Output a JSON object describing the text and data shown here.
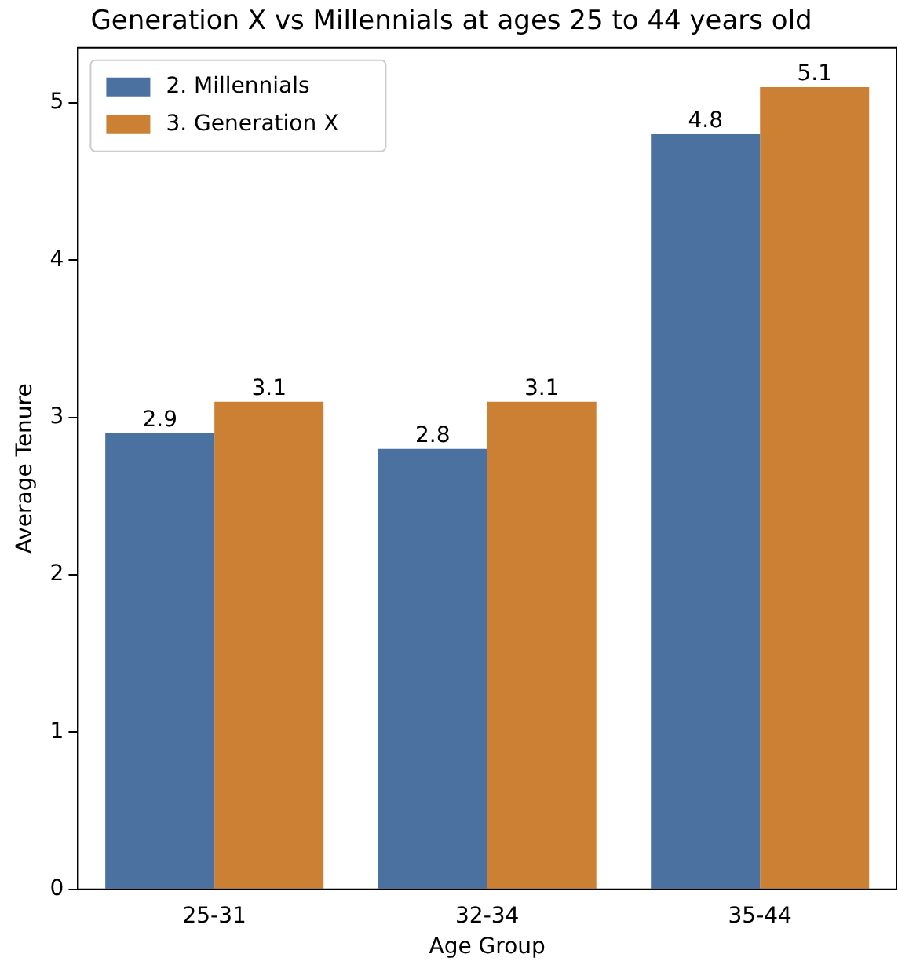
{
  "chart_data": {
    "type": "bar",
    "title": "Generation X vs Millennials at ages 25 to 44 years old",
    "xlabel": "Age Group",
    "ylabel": "Average Tenure",
    "categories": [
      "25-31",
      "32-34",
      "35-44"
    ],
    "series": [
      {
        "name": "2. Millennials",
        "color": "#4a71a0",
        "values": [
          2.9,
          2.8,
          4.8
        ]
      },
      {
        "name": "3. Generation X",
        "color": "#cc8033",
        "values": [
          3.1,
          3.1,
          5.1
        ]
      }
    ],
    "ylim": [
      0,
      5.35
    ],
    "yticks": [
      0,
      1,
      2,
      3,
      4,
      5
    ],
    "grid": false,
    "legend": "top left",
    "data_labels": true
  }
}
